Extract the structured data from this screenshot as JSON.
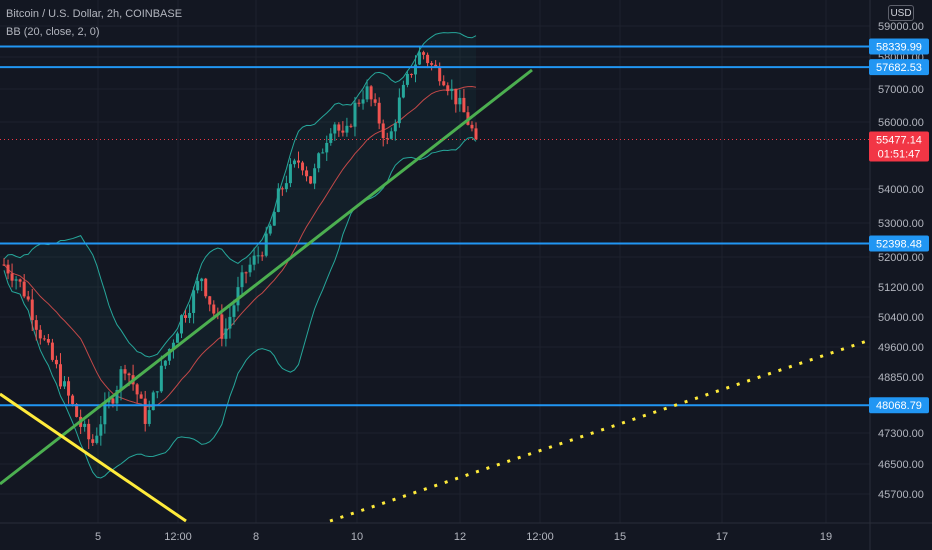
{
  "legend": {
    "title": "Bitcoin / U.S. Dollar, 2h, COINBASE",
    "indicator": "BB (20, close, 2, 0)"
  },
  "currency": "USD",
  "colors": {
    "background": "#131722",
    "grid": "#1e222d",
    "up": "#26a69a",
    "down": "#ef5350",
    "horizontal_line": "#2196f3",
    "trend_green": "#4caf50",
    "trend_yellow": "#ffeb3b",
    "bb_band": "#26a69a",
    "bb_basis": "#ef5350",
    "price_label": "#f23645"
  },
  "chart_data": {
    "type": "candlestick",
    "title": "Bitcoin / U.S. Dollar, 2h, COINBASE",
    "indicator": "BB (20, close, 2, 0)",
    "x_ticks": [
      "5",
      "12:00",
      "8",
      "10",
      "12",
      "12:00",
      "15",
      "17",
      "19"
    ],
    "y_ticks": [
      "59000.00",
      "58000.00",
      "57000.00",
      "56000.00",
      "54000.00",
      "53000.00",
      "52000.00",
      "51200.00",
      "50400.00",
      "49600.00",
      "48850.00",
      "47300.00",
      "46500.00",
      "45700.00"
    ],
    "horizontal_levels": [
      "58339.99",
      "57682.53",
      "52398.48",
      "48068.79"
    ],
    "current_price": "55477.14",
    "countdown": "01:51:47",
    "price_series_approx": [
      51800,
      51500,
      51000,
      50200,
      49500,
      48900,
      48200,
      47500,
      47000,
      47800,
      48400,
      49200,
      48500,
      47600,
      48700,
      49500,
      50300,
      50800,
      51500,
      50600,
      49900,
      50800,
      51600,
      52000,
      52500,
      53800,
      54500,
      54900,
      54200,
      55200,
      56100,
      55400,
      56500,
      57000,
      56200,
      55300,
      56600,
      57500,
      58200,
      57700,
      57400,
      56800,
      56200,
      55480
    ],
    "trendlines": [
      {
        "color": "green",
        "style": "solid",
        "direction": "rising"
      },
      {
        "color": "yellow",
        "style": "solid",
        "direction": "falling"
      },
      {
        "color": "yellow",
        "style": "dotted",
        "direction": "rising"
      }
    ],
    "grid": true,
    "legend_position": "top-left"
  }
}
